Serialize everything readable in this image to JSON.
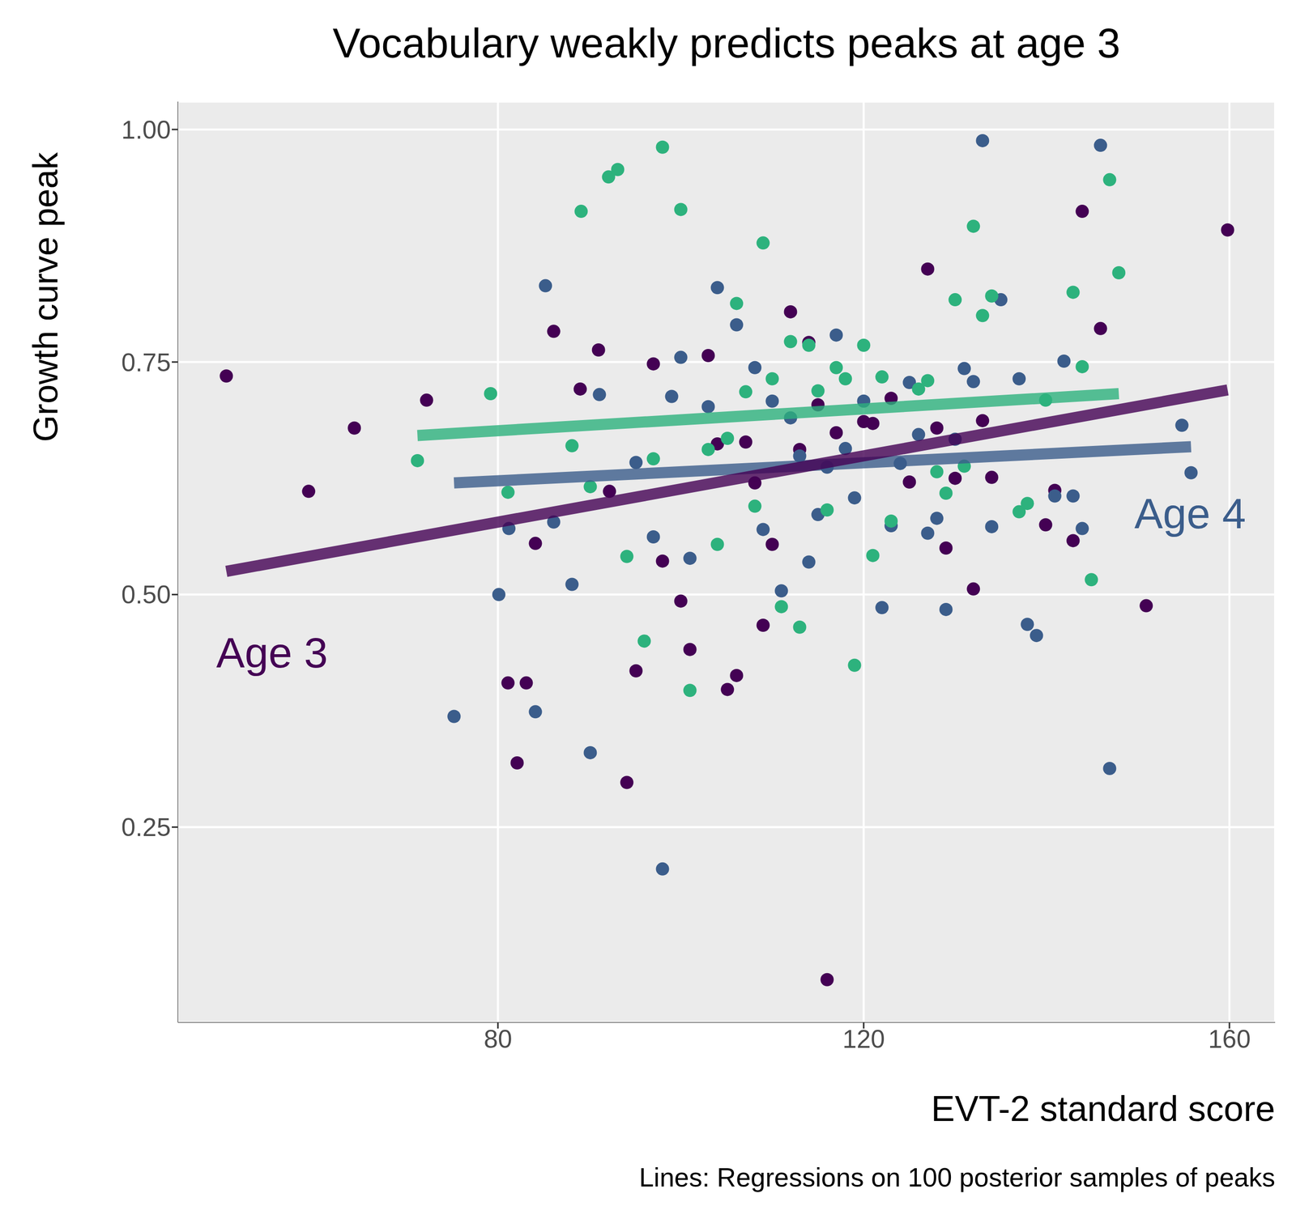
{
  "chart_data": {
    "type": "scatter",
    "title": "Vocabulary weakly predicts peaks at age 3",
    "caption": "Lines: Regressions on 100 posterior samples of peaks",
    "x_label": "EVT-2 standard score",
    "y_label": "Growth curve peak",
    "xlim": [
      45,
      165
    ],
    "xticks": [
      80,
      120,
      160
    ],
    "ylim": [
      0.04,
      1.03
    ],
    "yticks": [
      0.25,
      {
        "value": 0.5,
        "label": "0.50"
      },
      0.75,
      {
        "value": 1,
        "label": "1.00"
      }
    ],
    "grid": true,
    "series": [
      {
        "type": "scatter",
        "color": "#440154",
        "marker": "circle",
        "x": [
          50.3,
          59.3,
          64.3,
          72.2,
          86.1,
          91.0,
          89.0,
          92.2,
          84.1,
          81.1,
          83.1,
          82.1,
          94.1,
          95.1,
          97.0,
          98.0,
          100.0,
          101.0,
          103.0,
          104.0,
          105.1,
          106.1,
          107.1,
          108.1,
          109.0,
          110.0,
          112.0,
          113.0,
          114.0,
          115.0,
          116.0,
          117.0,
          120.0,
          121.0,
          123.0,
          125.0,
          127.0,
          128.0,
          129.0,
          130.0,
          132.0,
          133.0,
          134.0,
          139.9,
          140.9,
          142.9,
          143.9,
          145.9,
          150.9,
          159.8
        ],
        "values": [
          0.735,
          0.611,
          0.679,
          0.709,
          0.783,
          0.763,
          0.721,
          0.611,
          0.555,
          0.405,
          0.405,
          0.319,
          0.298,
          0.418,
          0.748,
          0.536,
          0.493,
          0.441,
          0.757,
          0.662,
          0.398,
          0.413,
          0.664,
          0.62,
          0.467,
          0.554,
          0.804,
          0.656,
          0.771,
          0.704,
          0.086,
          0.674,
          0.686,
          0.684,
          0.711,
          0.621,
          0.85,
          0.679,
          0.55,
          0.625,
          0.506,
          0.687,
          0.626,
          0.575,
          0.612,
          0.558,
          0.912,
          0.786,
          0.488,
          0.892
        ]
      },
      {
        "type": "scatter",
        "color": "#3b5d8b",
        "marker": "circle",
        "x": [
          75.2,
          80.1,
          81.2,
          84.1,
          85.2,
          86.1,
          88.1,
          90.1,
          91.1,
          95.1,
          97.0,
          98.0,
          99.0,
          100.0,
          101.0,
          103.0,
          104.0,
          106.1,
          108.1,
          109.0,
          110.0,
          111.0,
          112.0,
          113.0,
          114.0,
          115.0,
          116.0,
          117.0,
          118.0,
          119.0,
          120.0,
          122.0,
          123.0,
          124.0,
          125.0,
          126.0,
          127.0,
          128.0,
          129.0,
          130.0,
          131.0,
          132.0,
          133.0,
          134.0,
          135.0,
          137.0,
          137.9,
          138.9,
          140.9,
          141.9,
          142.9,
          143.9,
          145.9,
          146.9,
          154.8,
          155.8
        ],
        "values": [
          0.369,
          0.5,
          0.571,
          0.374,
          0.832,
          0.578,
          0.511,
          0.33,
          0.715,
          0.642,
          0.562,
          0.205,
          0.713,
          0.755,
          0.539,
          0.702,
          0.83,
          0.79,
          0.744,
          0.57,
          0.708,
          0.504,
          0.69,
          0.649,
          0.535,
          0.586,
          0.637,
          0.779,
          0.657,
          0.604,
          0.708,
          0.486,
          0.574,
          0.641,
          0.728,
          0.672,
          0.566,
          0.582,
          0.484,
          0.667,
          0.743,
          0.729,
          0.988,
          0.573,
          0.817,
          0.732,
          0.468,
          0.456,
          0.606,
          0.751,
          0.606,
          0.571,
          0.983,
          0.313,
          0.682,
          0.631
        ]
      },
      {
        "type": "scatter",
        "color": "#2db27d",
        "marker": "circle",
        "x": [
          71.2,
          79.2,
          81.1,
          88.1,
          89.1,
          90.1,
          92.1,
          93.1,
          94.1,
          96.0,
          97.0,
          98.0,
          100.0,
          101.0,
          103.0,
          104.0,
          105.1,
          106.1,
          107.1,
          108.1,
          109.0,
          110.0,
          111.0,
          112.0,
          113.0,
          114.0,
          115.0,
          116.0,
          117.0,
          118.0,
          119.0,
          120.0,
          121.0,
          122.0,
          123.0,
          126.0,
          127.0,
          128.0,
          129.0,
          130.0,
          131.0,
          132.0,
          133.0,
          134.0,
          137.0,
          137.9,
          139.9,
          142.9,
          143.9,
          144.9,
          146.9,
          147.9
        ],
        "values": [
          0.644,
          0.716,
          0.61,
          0.66,
          0.912,
          0.616,
          0.949,
          0.957,
          0.541,
          0.45,
          0.646,
          0.981,
          0.914,
          0.397,
          0.656,
          0.554,
          0.668,
          0.813,
          0.718,
          0.595,
          0.878,
          0.732,
          0.487,
          0.772,
          0.465,
          0.768,
          0.719,
          0.591,
          0.744,
          0.732,
          0.424,
          0.768,
          0.542,
          0.734,
          0.579,
          0.721,
          0.73,
          0.632,
          0.609,
          0.817,
          0.638,
          0.896,
          0.8,
          0.821,
          0.589,
          0.598,
          0.709,
          0.825,
          0.745,
          0.516,
          0.946,
          0.846
        ]
      },
      {
        "type": "line",
        "color": "#2db27d",
        "x": [
          71.2,
          147.9
        ],
        "values": [
          0.671,
          0.716
        ]
      },
      {
        "type": "line",
        "color": "#3b5d8b",
        "x": [
          75.2,
          155.8
        ],
        "values": [
          0.62,
          0.659
        ]
      },
      {
        "type": "line",
        "color": "#440154",
        "x": [
          50.3,
          159.8
        ],
        "values": [
          0.525,
          0.72
        ]
      }
    ],
    "annotations": [
      {
        "text": "Age 3",
        "x": 55.3,
        "y": 0.438,
        "color": "#440154"
      },
      {
        "text": "Age 4",
        "x": 155.7,
        "y": 0.5875,
        "color": "#3b5d8b"
      }
    ]
  }
}
